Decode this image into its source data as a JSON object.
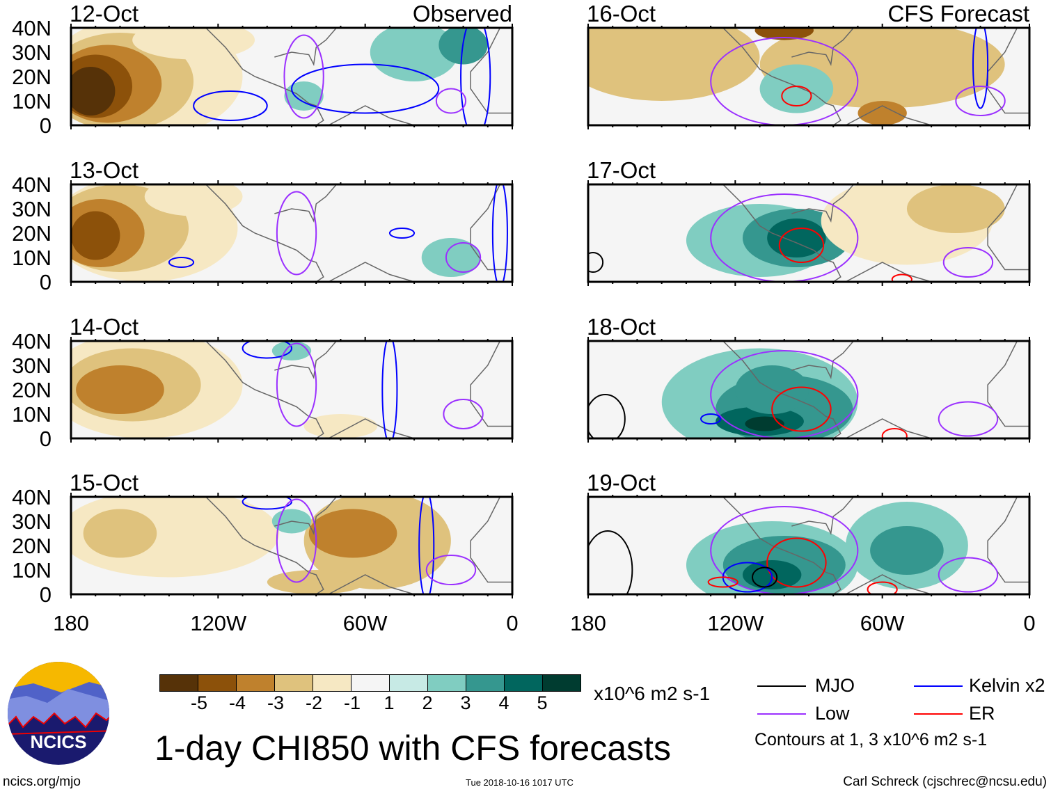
{
  "panels": [
    {
      "date": "12-Oct",
      "tag": "Observed"
    },
    {
      "date": "13-Oct"
    },
    {
      "date": "14-Oct"
    },
    {
      "date": "15-Oct"
    },
    {
      "date": "16-Oct",
      "tag": "CFS Forecast"
    },
    {
      "date": "17-Oct"
    },
    {
      "date": "18-Oct"
    },
    {
      "date": "19-Oct"
    }
  ],
  "lat_labels": [
    "40N",
    "30N",
    "20N",
    "10N",
    "0"
  ],
  "lon_labels": [
    "180",
    "120W",
    "60W",
    "0"
  ],
  "colorbar": {
    "colors": [
      "#563208",
      "#8c510a",
      "#bf812d",
      "#dfc27d",
      "#f6e8c3",
      "#f5f5f5",
      "#c7eae5",
      "#80cdc1",
      "#35978f",
      "#01665e",
      "#003c30"
    ],
    "labels": [
      "-5",
      "-4",
      "-3",
      "-2",
      "-1",
      "1",
      "2",
      "3",
      "4",
      "5"
    ],
    "units": "x10^6 m2 s-1"
  },
  "legend": {
    "items": [
      {
        "label": "MJO",
        "color": "#000000"
      },
      {
        "label": "Kelvin x2",
        "color": "#0000ff"
      },
      {
        "label": "Low",
        "color": "#9b30ff"
      },
      {
        "label": "ER",
        "color": "#ff0000"
      }
    ],
    "note": "Contours at 1, 3 x10^6 m2 s-1"
  },
  "title": "1-day CHI850 with CFS forecasts",
  "logo_text": "NCICS",
  "footer": {
    "url": "ncics.org/mjo",
    "timestamp": "Tue 2018-10-16 1017 UTC",
    "author": "Carl Schreck (cjschrec@ncsu.edu)"
  }
}
